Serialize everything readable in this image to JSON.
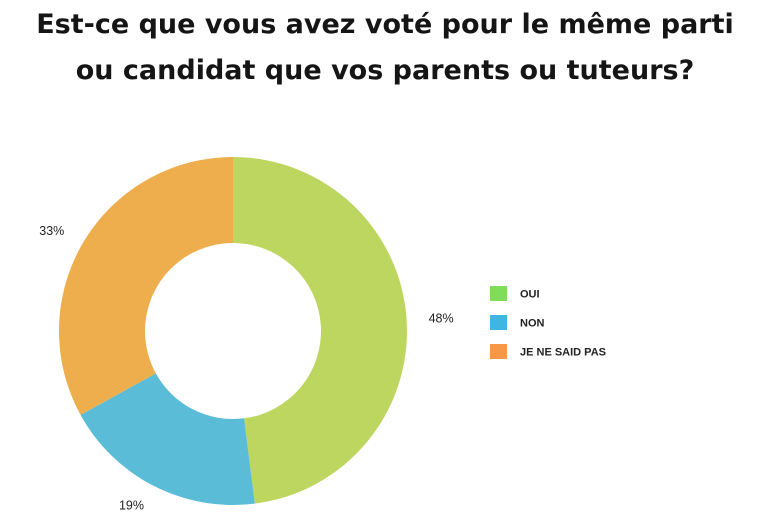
{
  "title": {
    "line1": "Est-ce que vous avez voté pour le même parti",
    "line2": "ou candidat que vos parents ou tuteurs?"
  },
  "chart_data": {
    "type": "pie",
    "donut": true,
    "title": "Est-ce que vous avez voté pour le même parti ou candidat que vos parents ou tuteurs?",
    "categories": [
      "OUI",
      "NON",
      "JE NE SAID PAS"
    ],
    "values": [
      48,
      19,
      33
    ],
    "labels": [
      "48%",
      "19%",
      "33%"
    ],
    "slice_colors": [
      "#BDD660",
      "#5ABCD7",
      "#EEAE4D"
    ],
    "legend": {
      "position": "right",
      "items": [
        {
          "label": "OUI",
          "color": "#7FDD5A"
        },
        {
          "label": "NON",
          "color": "#3FB6E2"
        },
        {
          "label": "JE NE SAID PAS",
          "color": "#F7974A"
        }
      ]
    }
  }
}
